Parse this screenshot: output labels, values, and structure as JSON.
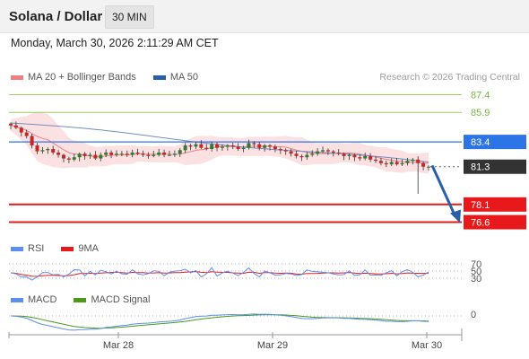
{
  "header": {
    "title": "Solana / Dollar",
    "interval": "30 MIN"
  },
  "datetime": "Monday, March 30, 2026 2:11:29 AM CET",
  "legend": {
    "ma20": "MA 20 + Bollinger Bands",
    "ma50": "MA 50",
    "copyright": "Research © 2026 Trading Central"
  },
  "rsi_legend": {
    "rsi": "RSI",
    "ma": "9MA"
  },
  "macd_legend": {
    "macd": "MACD",
    "signal": "MACD Signal"
  },
  "colors": {
    "ma20": "#f08080",
    "ma50": "#2b5ea8",
    "resistance_green": "#7cb342",
    "current": "#333333",
    "support": "#e8191b",
    "pivot": "#2d74e6",
    "arrow": "#2b5ea8",
    "rsi": "#5b8ff0",
    "rsi_ma": "#e8191b",
    "macd": "#5b8ff0",
    "macd_signal": "#4a9a1a"
  },
  "chart_data": {
    "type": "line",
    "title": "Solana / Dollar",
    "ylim": [
      75.5,
      88.2
    ],
    "x_ticks": [
      "Mar 28",
      "Mar 29",
      "Mar 30"
    ],
    "levels": [
      {
        "value": 87.4,
        "label": "87.4",
        "kind": "resistance"
      },
      {
        "value": 85.9,
        "label": "85.9",
        "kind": "resistance"
      },
      {
        "value": 83.4,
        "label": "83.4",
        "kind": "pivot"
      },
      {
        "value": 81.3,
        "label": "81.3",
        "kind": "current"
      },
      {
        "value": 78.1,
        "label": "78.1",
        "kind": "support"
      },
      {
        "value": 76.6,
        "label": "76.6",
        "kind": "support"
      }
    ],
    "close": [
      84.8,
      84.6,
      84.2,
      83.9,
      83.1,
      82.6,
      82.7,
      82.8,
      82.5,
      82.3,
      82.0,
      81.9,
      82.1,
      82.4,
      82.2,
      82.3,
      82.0,
      82.3,
      82.5,
      82.3,
      82.4,
      82.4,
      82.3,
      82.5,
      82.4,
      82.3,
      82.2,
      82.3,
      82.5,
      82.3,
      82.3,
      82.4,
      82.7,
      83.1,
      83.0,
      83.2,
      82.9,
      82.8,
      83.2,
      82.9,
      83.0,
      83.1,
      83.0,
      82.8,
      82.9,
      83.3,
      83.2,
      82.9,
      83.1,
      83.0,
      82.8,
      82.7,
      82.6,
      82.4,
      82.2,
      82.1,
      82.3,
      82.4,
      82.6,
      82.7,
      82.6,
      82.5,
      82.4,
      82.2,
      82.3,
      82.1,
      82.0,
      82.2,
      81.9,
      81.8,
      81.6,
      81.5,
      81.7,
      81.5,
      81.6,
      81.8,
      81.9,
      81.6,
      81.3,
      81.3
    ],
    "series": [
      {
        "name": "MA 20 + Bollinger Bands"
      },
      {
        "name": "MA 50"
      }
    ],
    "rsi_levels": [
      "70",
      "50",
      "30"
    ],
    "macd_levels": [
      "0"
    ],
    "projection": {
      "from": 81.4,
      "to": 76.6
    }
  }
}
